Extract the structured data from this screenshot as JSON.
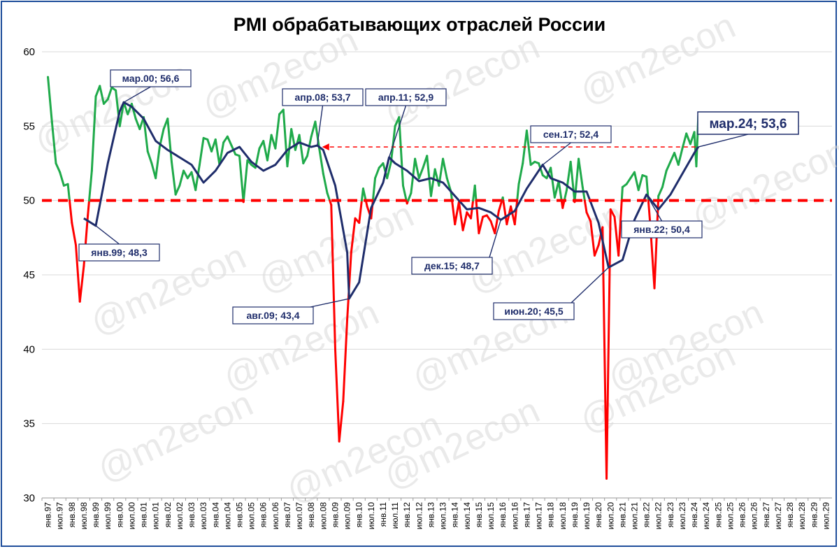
{
  "chart_data": {
    "type": "line",
    "title": "PMI обрабатывающих отраслей России",
    "ylim": [
      30,
      60
    ],
    "yticks": [
      "30",
      "35",
      "40",
      "45",
      "50",
      "55",
      "60"
    ],
    "xticks": [
      "янв.97",
      "июл.97",
      "янв.98",
      "июл.98",
      "янв.99",
      "июл.99",
      "янв.00",
      "июл.00",
      "янв.01",
      "июл.01",
      "янв.02",
      "июл.02",
      "янв.03",
      "июл.03",
      "янв.04",
      "июл.04",
      "янв.05",
      "июл.05",
      "янв.06",
      "июл.06",
      "янв.07",
      "июл.07",
      "янв.08",
      "июл.08",
      "янв.09",
      "июл.09",
      "янв.10",
      "июл.10",
      "янв.11",
      "июл.11",
      "янв.12",
      "июл.12",
      "янв.13",
      "июл.13",
      "янв.14",
      "июл.14",
      "янв.15",
      "июл.15",
      "янв.16",
      "июл.16",
      "янв.17",
      "июл.17",
      "янв.18",
      "июл.18",
      "янв.19",
      "июл.19",
      "янв.20",
      "июл.20",
      "янв.21",
      "июл.21",
      "янв.22",
      "июл.22",
      "янв.23",
      "июл.23",
      "янв.24",
      "июл.24",
      "янв.25",
      "июл.25",
      "янв.26",
      "июл.26",
      "янв.27",
      "июл.27",
      "янв.28",
      "июл.28",
      "янв.29",
      "июл.29"
    ],
    "threshold": 50,
    "grid": true,
    "colors": {
      "above": "#1faa4a",
      "below": "#ff0000",
      "trend": "#1f2d6b",
      "threshold": "#ff0000",
      "grid": "#d9d9d9",
      "frame": "#1f4e9b"
    },
    "series": [
      {
        "role": "monthly",
        "points": [
          [
            "янв.97",
            58.3
          ],
          [
            "мар.97",
            55.3
          ],
          [
            "май.97",
            52.5
          ],
          [
            "июл.97",
            51.9
          ],
          [
            "сен.97",
            51.0
          ],
          [
            "ноя.97",
            51.1
          ],
          [
            "янв.98",
            48.5
          ],
          [
            "мар.98",
            47.0
          ],
          [
            "май.98",
            43.2
          ],
          [
            "июл.98",
            45.6
          ],
          [
            "сен.98",
            49.0
          ],
          [
            "ноя.98",
            52.0
          ],
          [
            "янв.99",
            57.0
          ],
          [
            "мар.99",
            57.7
          ],
          [
            "май.99",
            56.5
          ],
          [
            "июл.99",
            56.8
          ],
          [
            "сен.99",
            57.6
          ],
          [
            "ноя.99",
            57.4
          ],
          [
            "янв.00",
            55.0
          ],
          [
            "мар.00",
            56.6
          ],
          [
            "май.00",
            55.8
          ],
          [
            "июл.00",
            56.5
          ],
          [
            "сен.00",
            55.5
          ],
          [
            "ноя.00",
            54.8
          ],
          [
            "янв.01",
            55.6
          ],
          [
            "мар.01",
            53.3
          ],
          [
            "май.01",
            52.5
          ],
          [
            "июл.01",
            51.5
          ],
          [
            "сен.01",
            53.6
          ],
          [
            "ноя.01",
            54.8
          ],
          [
            "янв.02",
            55.5
          ],
          [
            "мар.02",
            52.6
          ],
          [
            "май.02",
            50.4
          ],
          [
            "июл.02",
            51.0
          ],
          [
            "сен.02",
            52.0
          ],
          [
            "ноя.02",
            51.5
          ],
          [
            "янв.03",
            51.9
          ],
          [
            "мар.03",
            50.7
          ],
          [
            "май.03",
            52.4
          ],
          [
            "июл.03",
            54.2
          ],
          [
            "сен.03",
            54.1
          ],
          [
            "ноя.03",
            53.3
          ],
          [
            "янв.04",
            54.1
          ],
          [
            "мар.04",
            52.4
          ],
          [
            "май.04",
            53.9
          ],
          [
            "июл.04",
            54.3
          ],
          [
            "сен.04",
            53.7
          ],
          [
            "ноя.04",
            53.1
          ],
          [
            "янв.05",
            53.0
          ],
          [
            "мар.05",
            49.9
          ],
          [
            "май.05",
            52.7
          ],
          [
            "июл.05",
            52.4
          ],
          [
            "сен.05",
            52.2
          ],
          [
            "ноя.05",
            53.5
          ],
          [
            "янв.06",
            54.0
          ],
          [
            "мар.06",
            52.7
          ],
          [
            "май.06",
            54.4
          ],
          [
            "июл.06",
            53.5
          ],
          [
            "сен.06",
            55.8
          ],
          [
            "ноя.06",
            56.1
          ],
          [
            "янв.07",
            52.3
          ],
          [
            "мар.07",
            54.8
          ],
          [
            "май.07",
            53.4
          ],
          [
            "июл.07",
            54.4
          ],
          [
            "сен.07",
            52.5
          ],
          [
            "ноя.07",
            53.0
          ],
          [
            "янв.08",
            54.3
          ],
          [
            "мар.08",
            55.3
          ],
          [
            "май.08",
            53.5
          ],
          [
            "июл.08",
            51.8
          ],
          [
            "сен.08",
            50.5
          ],
          [
            "ноя.08",
            49.7
          ],
          [
            "янв.09",
            40.0
          ],
          [
            "мар.09",
            33.8
          ],
          [
            "май.09",
            36.5
          ],
          [
            "июл.09",
            42.0
          ],
          [
            "сен.09",
            46.5
          ],
          [
            "ноя.09",
            48.8
          ],
          [
            "янв.10",
            48.5
          ],
          [
            "мар.10",
            50.8
          ],
          [
            "май.10",
            49.6
          ],
          [
            "июл.10",
            48.8
          ],
          [
            "сен.10",
            51.5
          ],
          [
            "ноя.10",
            52.2
          ],
          [
            "янв.11",
            52.5
          ],
          [
            "мар.11",
            51.5
          ],
          [
            "май.11",
            52.6
          ],
          [
            "июл.11",
            55.0
          ],
          [
            "сен.11",
            55.6
          ],
          [
            "ноя.11",
            51.0
          ],
          [
            "янв.12",
            49.8
          ],
          [
            "мар.12",
            50.5
          ],
          [
            "май.12",
            52.8
          ],
          [
            "июл.12",
            51.5
          ],
          [
            "сен.12",
            52.2
          ],
          [
            "ноя.12",
            53.0
          ],
          [
            "янв.13",
            50.3
          ],
          [
            "мар.13",
            52.1
          ],
          [
            "май.13",
            51.0
          ],
          [
            "июл.13",
            52.8
          ],
          [
            "сен.13",
            51.5
          ],
          [
            "ноя.13",
            50.6
          ],
          [
            "янв.14",
            48.4
          ],
          [
            "мар.14",
            49.9
          ],
          [
            "май.14",
            48.0
          ],
          [
            "июл.14",
            49.2
          ],
          [
            "сен.14",
            48.8
          ],
          [
            "ноя.14",
            51.0
          ],
          [
            "янв.15",
            47.8
          ],
          [
            "мар.15",
            48.9
          ],
          [
            "май.15",
            49.0
          ],
          [
            "июл.15",
            48.6
          ],
          [
            "сен.15",
            47.8
          ],
          [
            "ноя.15",
            49.3
          ],
          [
            "янв.16",
            50.2
          ],
          [
            "мар.16",
            48.4
          ],
          [
            "май.16",
            49.6
          ],
          [
            "июл.16",
            48.4
          ],
          [
            "сен.16",
            51.1
          ],
          [
            "ноя.16",
            52.5
          ],
          [
            "янв.17",
            54.7
          ],
          [
            "мар.17",
            52.4
          ],
          [
            "май.17",
            52.6
          ],
          [
            "июл.17",
            52.5
          ],
          [
            "сен.17",
            51.7
          ],
          [
            "ноя.17",
            51.5
          ],
          [
            "янв.18",
            52.2
          ],
          [
            "мар.18",
            50.2
          ],
          [
            "май.18",
            51.3
          ],
          [
            "июл.18",
            49.5
          ],
          [
            "сен.18",
            50.7
          ],
          [
            "ноя.18",
            52.6
          ],
          [
            "янв.19",
            49.9
          ],
          [
            "мар.19",
            52.8
          ],
          [
            "май.19",
            50.9
          ],
          [
            "июл.19",
            49.2
          ],
          [
            "сен.19",
            48.6
          ],
          [
            "ноя.19",
            46.3
          ],
          [
            "янв.20",
            47.0
          ],
          [
            "мар.20",
            48.2
          ],
          [
            "май.20",
            31.3
          ],
          [
            "июл.20",
            49.4
          ],
          [
            "сен.20",
            48.9
          ],
          [
            "ноя.20",
            46.3
          ],
          [
            "янв.21",
            50.9
          ],
          [
            "мар.21",
            51.1
          ],
          [
            "май.21",
            51.5
          ],
          [
            "июл.21",
            51.9
          ],
          [
            "сен.21",
            50.7
          ],
          [
            "ноя.21",
            51.7
          ],
          [
            "янв.22",
            51.6
          ],
          [
            "мар.22",
            48.2
          ],
          [
            "май.22",
            44.1
          ],
          [
            "июл.22",
            50.3
          ],
          [
            "сен.22",
            50.9
          ],
          [
            "ноя.22",
            52.0
          ],
          [
            "янв.23",
            52.6
          ],
          [
            "мар.23",
            53.2
          ],
          [
            "май.23",
            52.4
          ],
          [
            "июл.23",
            53.5
          ],
          [
            "сен.23",
            54.5
          ],
          [
            "ноя.23",
            53.8
          ],
          [
            "янв.24",
            54.6
          ],
          [
            "фев.24",
            52.3
          ],
          [
            "мар.24",
            55.7
          ]
        ]
      },
      {
        "role": "moving-average",
        "points": [
          [
            "июл.98",
            48.8
          ],
          [
            "янв.99",
            48.3
          ],
          [
            "июл.99",
            52.5
          ],
          [
            "янв.00",
            56.0
          ],
          [
            "мар.00",
            56.6
          ],
          [
            "июл.00",
            56.3
          ],
          [
            "янв.01",
            55.5
          ],
          [
            "июл.01",
            54.0
          ],
          [
            "янв.02",
            53.4
          ],
          [
            "июл.02",
            52.9
          ],
          [
            "янв.03",
            52.4
          ],
          [
            "июл.03",
            51.2
          ],
          [
            "янв.04",
            52.0
          ],
          [
            "июл.04",
            53.2
          ],
          [
            "янв.05",
            53.6
          ],
          [
            "июл.05",
            52.6
          ],
          [
            "янв.06",
            52.0
          ],
          [
            "июл.06",
            52.4
          ],
          [
            "янв.07",
            53.4
          ],
          [
            "июл.07",
            53.9
          ],
          [
            "янв.08",
            53.6
          ],
          [
            "апр.08",
            53.7
          ],
          [
            "июл.08",
            53.4
          ],
          [
            "янв.09",
            51.0
          ],
          [
            "июл.09",
            46.5
          ],
          [
            "авг.09",
            43.4
          ],
          [
            "янв.10",
            44.5
          ],
          [
            "июл.10",
            49.5
          ],
          [
            "янв.11",
            51.2
          ],
          [
            "апр.11",
            52.9
          ],
          [
            "июл.11",
            52.5
          ],
          [
            "янв.12",
            52.0
          ],
          [
            "июл.12",
            51.3
          ],
          [
            "янв.13",
            51.5
          ],
          [
            "июл.13",
            51.2
          ],
          [
            "янв.14",
            50.3
          ],
          [
            "июл.14",
            49.4
          ],
          [
            "янв.15",
            49.5
          ],
          [
            "июл.15",
            49.2
          ],
          [
            "дек.15",
            48.7
          ],
          [
            "июл.16",
            49.3
          ],
          [
            "янв.17",
            50.8
          ],
          [
            "июл.17",
            52.0
          ],
          [
            "сен.17",
            52.4
          ],
          [
            "янв.18",
            51.5
          ],
          [
            "июл.18",
            51.2
          ],
          [
            "янв.19",
            50.6
          ],
          [
            "июл.19",
            50.6
          ],
          [
            "янв.20",
            48.5
          ],
          [
            "июн.20",
            45.5
          ],
          [
            "янв.21",
            46.0
          ],
          [
            "июл.21",
            48.7
          ],
          [
            "янв.22",
            50.4
          ],
          [
            "июл.22",
            49.4
          ],
          [
            "янв.23",
            50.4
          ],
          [
            "июл.23",
            51.8
          ],
          [
            "янв.24",
            53.2
          ],
          [
            "мар.24",
            53.6
          ]
        ]
      }
    ],
    "annotations": [
      {
        "label": "мар.00; 56,6",
        "x": "мар.00",
        "y": 56.6
      },
      {
        "label": "янв.99; 48,3",
        "x": "янв.99",
        "y": 48.3
      },
      {
        "label": "апр.08; 53,7",
        "x": "апр.08",
        "y": 53.7
      },
      {
        "label": "апр.11; 52,9",
        "x": "апр.11",
        "y": 52.9
      },
      {
        "label": "авг.09; 43,4",
        "x": "авг.09",
        "y": 43.4
      },
      {
        "label": "дек.15; 48,7",
        "x": "дек.15",
        "y": 48.7
      },
      {
        "label": "сен.17; 52,4",
        "x": "сен.17",
        "y": 52.4
      },
      {
        "label": "янв.22; 50,4",
        "x": "янв.22",
        "y": 50.4
      },
      {
        "label": "июн.20; 45,5",
        "x": "июн.20",
        "y": 45.5
      },
      {
        "label": "мар.24; 53,6",
        "x": "мар.24",
        "y": 53.6,
        "emphasis": true
      }
    ],
    "reference_arrow": {
      "from": "мар.24",
      "to": "апр.08",
      "y": 53.6
    },
    "watermark": "@m2econ"
  }
}
